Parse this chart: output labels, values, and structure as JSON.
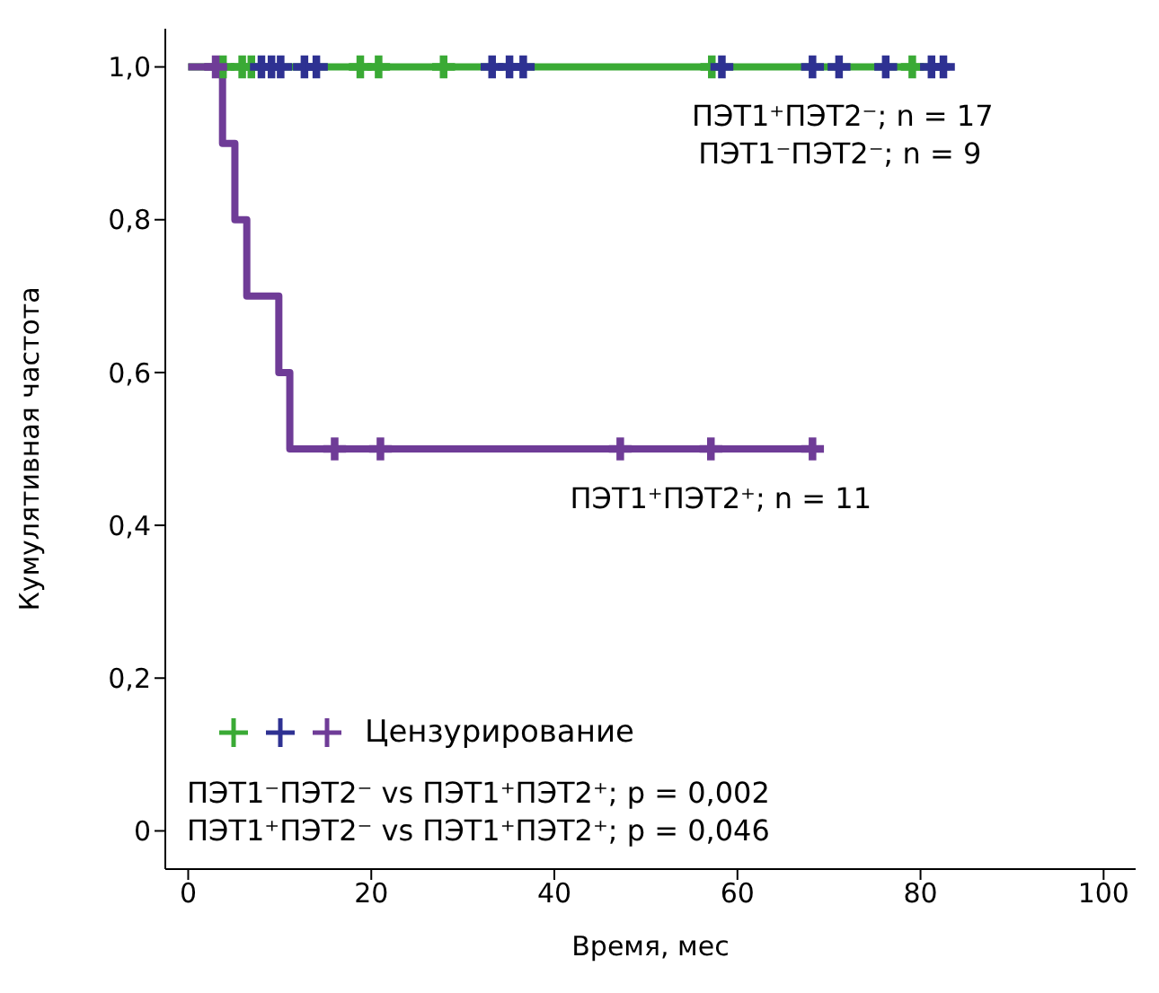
{
  "chart_data": {
    "type": "step",
    "xlabel": "Время, мес",
    "ylabel": "Кумулятивная частота",
    "xlim": [
      -2.5,
      103.5
    ],
    "ylim": [
      -0.05,
      1.05
    ],
    "xticks": [
      0,
      20,
      40,
      60,
      80,
      100
    ],
    "yticks": [
      0,
      {
        "value": 0.2,
        "label": "0,2"
      },
      {
        "value": 0.4,
        "label": "0,4"
      },
      {
        "value": 0.6,
        "label": "0,6"
      },
      {
        "value": 0.8,
        "label": "0,8"
      },
      {
        "value": 1,
        "label": "1,0"
      }
    ],
    "series": [
      {
        "color": "#3aaa35",
        "x": [
          0,
          83.2
        ],
        "values": [
          1,
          1
        ]
      },
      {
        "color": "#6f3c97",
        "x": [
          0,
          3.75,
          5.1,
          6.4,
          9.9,
          11.1,
          69.2
        ],
        "values": [
          1,
          0.9,
          0.8,
          0.7,
          0.6,
          0.5,
          0.5
        ]
      },
      {
        "type": "scatter",
        "marker": "cross",
        "color": "#3aaa35",
        "x": [
          3.8,
          5.9,
          6.9,
          18.8,
          20.8,
          27.9,
          57.2,
          79.1
        ],
        "values": [
          1,
          1,
          1,
          1,
          1,
          1,
          1,
          1
        ]
      },
      {
        "type": "scatter",
        "marker": "cross",
        "color": "#2e3192",
        "x": [
          8.0,
          9.1,
          10.1,
          12.7,
          14.0,
          33.2,
          35.1,
          36.6,
          58.3,
          68.2,
          71.1,
          76.2,
          81.2,
          82.5
        ],
        "values": [
          1,
          1,
          1,
          1,
          1,
          1,
          1,
          1,
          1,
          1,
          1,
          1,
          1,
          1
        ]
      },
      {
        "type": "scatter",
        "marker": "cross",
        "color": "#6f3c97",
        "x": [
          3.0,
          16,
          21,
          47.2,
          57.1,
          68.2
        ],
        "values": [
          1,
          0.5,
          0.5,
          0.5,
          0.5,
          0.5
        ]
      }
    ],
    "annotations": [
      {
        "text": "ПЭТ1⁺ПЭТ2⁻; n = 17",
        "x": 82.5,
        "y": 1
      },
      {
        "text": "ПЭТ1⁻ПЭТ2⁻; n = 9",
        "x": 83.2,
        "y": 1
      },
      {
        "text": "ПЭТ1⁺ПЭТ2⁺; n = 11",
        "x": 69.2,
        "y": 0.5
      },
      "Цензурирование",
      "ПЭТ1⁻ПЭТ2⁻ vs ПЭТ1⁺ПЭТ2⁺; p = 0,002",
      "ПЭТ1⁺ПЭТ2⁻ vs ПЭТ1⁺ПЭТ2⁺; p = 0,046"
    ]
  }
}
